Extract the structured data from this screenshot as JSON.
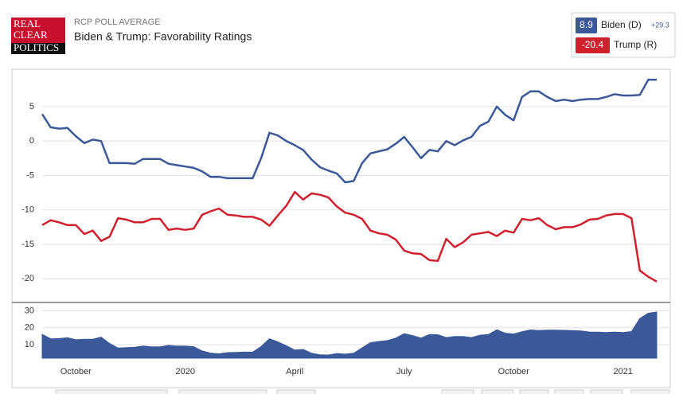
{
  "header": {
    "logo": [
      "REAL",
      "CLEAR",
      "POLITICS"
    ],
    "kicker": "RCP POLL AVERAGE"
  },
  "chart_data": [
    {
      "type": "line",
      "title": "Biden & Trump: Favorability Ratings",
      "categories": [
        null,
        null,
        null,
        null,
        "October",
        null,
        null,
        null,
        null,
        null,
        null,
        null,
        null,
        null,
        null,
        null,
        null,
        "2020",
        null,
        null,
        null,
        null,
        null,
        null,
        null,
        null,
        null,
        null,
        null,
        null,
        "April",
        null,
        null,
        null,
        null,
        null,
        null,
        null,
        null,
        null,
        null,
        null,
        null,
        "July",
        null,
        null,
        null,
        null,
        null,
        null,
        null,
        null,
        null,
        null,
        null,
        null,
        "October",
        null,
        null,
        null,
        null,
        null,
        null,
        null,
        null,
        null,
        null,
        null,
        null,
        "2021",
        null,
        null,
        null,
        null
      ],
      "series": [
        {
          "name": "Biden (D)",
          "color": "#3b5998",
          "latest": 8.9,
          "values": [
            3.9,
            2.0,
            1.8,
            1.9,
            0.7,
            -0.3,
            0.2,
            0,
            -3.2,
            -3.2,
            -3.2,
            -3.3,
            -2.6,
            -2.6,
            -2.6,
            -3.3,
            -3.5,
            -3.7,
            -3.9,
            -4.4,
            -5.2,
            -5.2,
            -5.4,
            -5.4,
            -5.4,
            -5.4,
            -2.5,
            1.2,
            0.8,
            0,
            -0.6,
            -1.3,
            -2.7,
            -3.8,
            -4.3,
            -4.7,
            -6.0,
            -5.8,
            -3.2,
            -1.8,
            -1.5,
            -1.2,
            -0.4,
            0.6,
            -0.9,
            -2.5,
            -1.3,
            -1.5,
            0,
            -0.6,
            0.1,
            0.6,
            2.2,
            2.8,
            5.0,
            3.8,
            3.0,
            6.4,
            7.2,
            7.2,
            6.4,
            5.8,
            6.0,
            5.8,
            6.0,
            6.1,
            6.1,
            6.4,
            6.8,
            6.6,
            6.6,
            6.7,
            8.9,
            8.9
          ]
        },
        {
          "name": "Trump (R)",
          "color": "#d0202e",
          "latest": -20.4,
          "values": [
            -12.2,
            -11.5,
            -11.8,
            -12.2,
            -12.2,
            -13.5,
            -13,
            -14.5,
            -13.9,
            -11.2,
            -11.4,
            -11.8,
            -11.8,
            -11.3,
            -11.3,
            -12.9,
            -12.7,
            -12.9,
            -12.7,
            -10.7,
            -10.2,
            -9.8,
            -10.7,
            -10.8,
            -11,
            -11,
            -11.4,
            -12.3,
            -10.8,
            -9.4,
            -7.4,
            -8.5,
            -7.6,
            -7.8,
            -8.2,
            -9.5,
            -10.4,
            -10.7,
            -11.3,
            -13,
            -13.4,
            -13.6,
            -14.3,
            -15.9,
            -16.3,
            -16.4,
            -17.3,
            -17.4,
            -14.2,
            -15.4,
            -14.7,
            -13.6,
            -13.4,
            -13.2,
            -13.8,
            -13.0,
            -13.3,
            -11.3,
            -11.5,
            -11.2,
            -12.2,
            -12.8,
            -12.5,
            -12.5,
            -12.1,
            -11.4,
            -11.3,
            -10.8,
            -10.6,
            -10.6,
            -11.2,
            -18.8,
            -19.7,
            -20.4
          ]
        }
      ],
      "ylim": [
        -23.2,
        10.3
      ],
      "yticks": [
        5,
        0,
        -5,
        -10,
        -15,
        -20
      ],
      "grid": true,
      "legend": "top-right"
    },
    {
      "type": "area",
      "color": "#3b5998",
      "latest": {
        "value": 29.3,
        "label": "+29.3"
      },
      "values": [
        16.1,
        13.5,
        13.6,
        14.1,
        12.9,
        13.2,
        13.2,
        14.5,
        10.7,
        8.0,
        8.2,
        8.5,
        9.2,
        8.7,
        8.7,
        9.6,
        9.2,
        9.2,
        8.8,
        6.3,
        5.0,
        4.6,
        5.3,
        5.4,
        5.6,
        5.6,
        8.9,
        13.5,
        11.6,
        9.4,
        6.8,
        7.2,
        4.9,
        4.0,
        3.9,
        4.8,
        4.4,
        4.9,
        8.1,
        11.2,
        11.9,
        12.4,
        13.9,
        16.5,
        15.4,
        13.9,
        16.0,
        15.9,
        14.2,
        14.8,
        14.8,
        14.2,
        15.6,
        16.0,
        18.8,
        16.8,
        16.3,
        17.7,
        18.7,
        18.4,
        18.6,
        18.6,
        18.5,
        18.3,
        18.1,
        17.5,
        17.4,
        17.2,
        17.4,
        17.2,
        17.8,
        25.5,
        28.6,
        29.3
      ],
      "ylim": [
        2,
        34.5
      ],
      "yticks": [
        30,
        20,
        10
      ],
      "grid": true
    }
  ]
}
